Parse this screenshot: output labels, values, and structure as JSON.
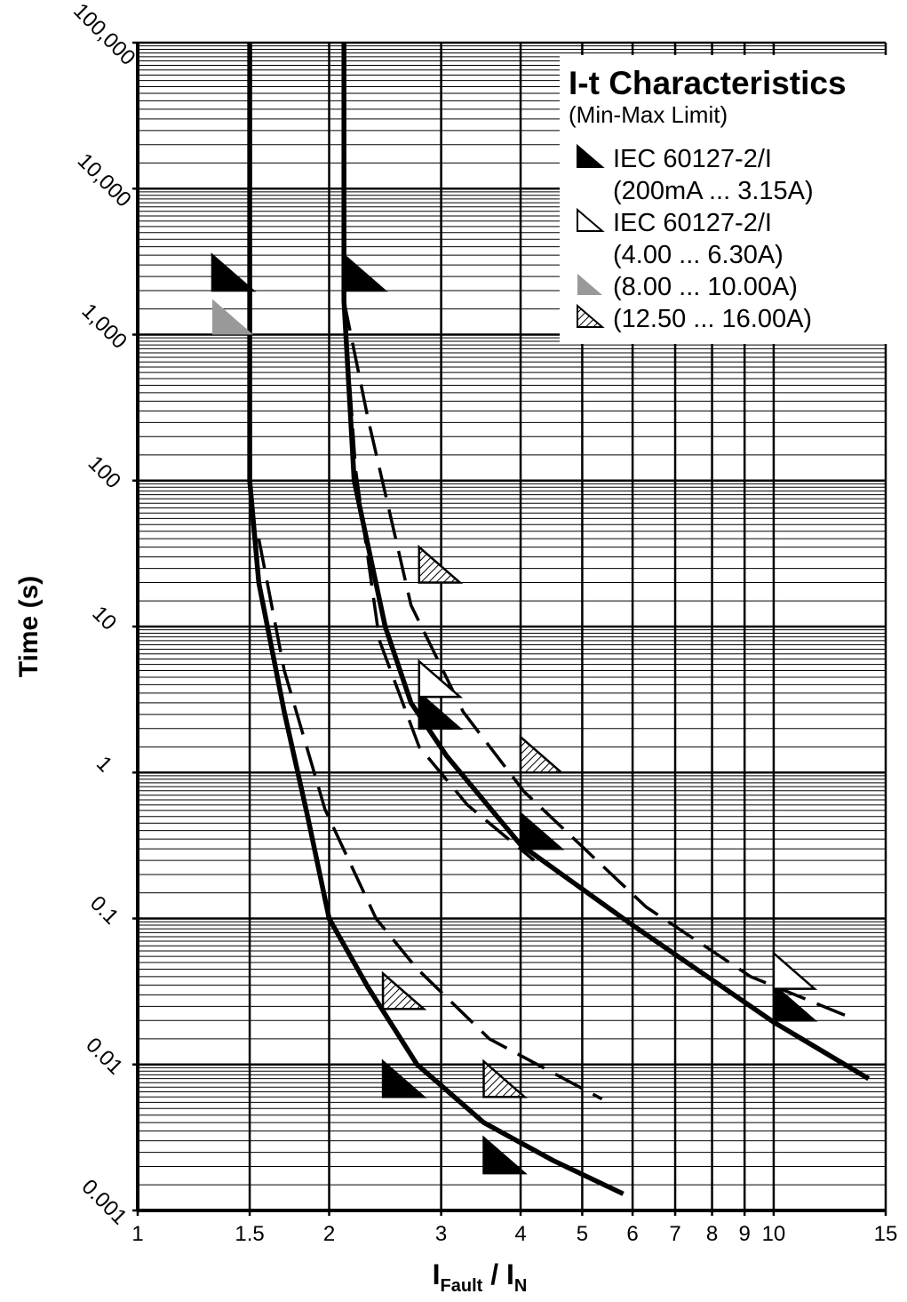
{
  "chart_data": {
    "type": "line",
    "title": "I-t Characteristics",
    "subtitle": "(Min-Max Limit)",
    "y_label": "Time (s)",
    "x_label": [
      {
        "text": "I"
      },
      {
        "text": "Fault",
        "sub": true
      },
      {
        "text": " / "
      },
      {
        "text": "I"
      },
      {
        "text": "N",
        "sub": true
      }
    ],
    "log_x": true,
    "log_y": true,
    "grid": true,
    "legend_position": "upper right",
    "xlim": [
      1,
      15
    ],
    "ylim": [
      0.001,
      100000
    ],
    "xticks": [
      1,
      1.5,
      2,
      3,
      4,
      5,
      6,
      7,
      8,
      9,
      10,
      15
    ],
    "yticks": [
      {
        "value": 0.001,
        "label": "0.001"
      },
      0.01,
      0.1,
      1,
      10,
      100,
      {
        "value": 1000,
        "label": "1,000"
      },
      {
        "value": 10000,
        "label": "10,000"
      },
      {
        "value": 100000,
        "label": "100,000"
      }
    ],
    "curves": [
      {
        "style": "solid",
        "color": "#000000",
        "x": [
          1.5,
          1.5,
          1.55,
          1.7,
          1.85,
          2,
          2.3,
          2.75,
          3.5,
          4.5,
          5.8
        ],
        "y": [
          100000,
          100,
          20,
          2.6,
          0.5,
          0.1,
          0.034,
          0.01,
          0.004,
          0.0022,
          0.0013
        ]
      },
      {
        "style": "solid",
        "color": "#000000",
        "x": [
          2.11,
          2.11,
          2.19,
          2.45,
          2.69,
          3.06,
          4,
          6,
          10,
          14.1
        ],
        "y": [
          100000,
          1700,
          100,
          10,
          3,
          1.3,
          0.32,
          0.09,
          0.0195,
          0.008
        ]
      },
      {
        "style": "dashed",
        "color": "#000000",
        "x": [
          1.55,
          1.7,
          1.97,
          2.37,
          2.74,
          3.57,
          5.37
        ],
        "y": [
          40,
          5,
          0.56,
          0.1,
          0.046,
          0.015,
          0.0058
        ]
      },
      {
        "style": "dashed",
        "color": "#000000",
        "x": [
          2.11,
          2.3,
          2.69,
          3.25,
          4.05,
          6.3,
          9.2,
          13.2
        ],
        "y": [
          1700,
          270,
          14,
          2.6,
          0.74,
          0.12,
          0.04,
          0.021
        ]
      },
      {
        "style": "dashed",
        "color": "#000000",
        "x": [
          2.11,
          2.2,
          2.4,
          2.77,
          3.3,
          4.2
        ],
        "y": [
          1700,
          120,
          8,
          1.5,
          0.6,
          0.25
        ]
      }
    ],
    "markers": [
      {
        "name": "IEC 60127-2/I",
        "detail": "(200mA ... 3.15A)",
        "fill": "#000000",
        "stroke": "#000000",
        "hatch": false,
        "x": [
          1.31,
          2.11,
          2.77,
          4,
          10,
          2.43,
          3.5
        ],
        "y": [
          2000,
          2000,
          2,
          0.3,
          0.02,
          0.006,
          0.0018
        ]
      },
      {
        "name": "IEC 60127-2/I",
        "detail": "(4.00 ... 6.30A)",
        "fill": "#ffffff",
        "stroke": "#000000",
        "hatch": false,
        "x": [
          2.77,
          10
        ],
        "y": [
          3.3,
          0.033
        ]
      },
      {
        "name": "(8.00 ... 10.00A)",
        "fill": "#999999",
        "stroke": "none",
        "hatch": false,
        "x": [
          1.31
        ],
        "y": [
          1000
        ]
      },
      {
        "name": "(12.50 ... 16.00A)",
        "fill": "#ffffff",
        "stroke": "#000000",
        "hatch": true,
        "x": [
          2.77,
          4,
          2.43,
          3.5
        ],
        "y": [
          20,
          1,
          0.024,
          0.006
        ]
      }
    ]
  }
}
